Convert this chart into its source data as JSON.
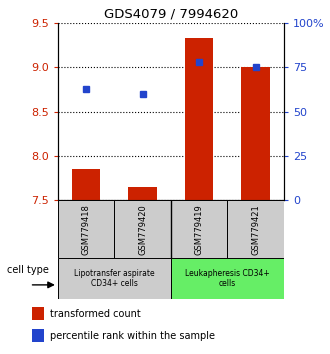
{
  "title": "GDS4079 / 7994620",
  "samples": [
    "GSM779418",
    "GSM779420",
    "GSM779419",
    "GSM779421"
  ],
  "transformed_counts": [
    7.85,
    7.65,
    9.33,
    9.0
  ],
  "percentile_ranks": [
    63,
    60,
    78,
    75
  ],
  "ylim_left": [
    7.5,
    9.5
  ],
  "ylim_right": [
    0,
    100
  ],
  "yticks_left": [
    7.5,
    8.0,
    8.5,
    9.0,
    9.5
  ],
  "yticks_right": [
    0,
    25,
    50,
    75,
    100
  ],
  "ytick_labels_right": [
    "0",
    "25",
    "50",
    "75",
    "100%"
  ],
  "bar_color": "#cc2200",
  "dot_color": "#2244cc",
  "bar_baseline": 7.5,
  "group_box_color_1": "#cccccc",
  "group_box_color_2": "#66ee66",
  "group1_label": "Lipotransfer aspirate\nCD34+ cells",
  "group2_label": "Leukapheresis CD34+\ncells",
  "legend_red_label": "transformed count",
  "legend_blue_label": "percentile rank within the sample",
  "cell_type_label": "cell type",
  "left_tick_color": "#cc2200",
  "right_tick_color": "#2244cc"
}
